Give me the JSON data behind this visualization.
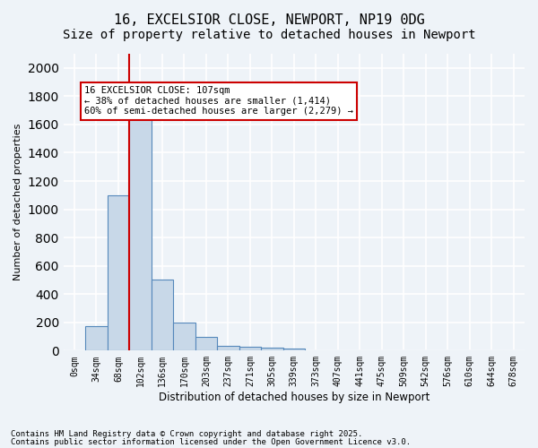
{
  "title1": "16, EXCELSIOR CLOSE, NEWPORT, NP19 0DG",
  "title2": "Size of property relative to detached houses in Newport",
  "xlabel": "Distribution of detached houses by size in Newport",
  "ylabel": "Number of detached properties",
  "bar_values": [
    0,
    175,
    1100,
    1650,
    500,
    200,
    100,
    35,
    25,
    18,
    15,
    0,
    0,
    0,
    0,
    0,
    0,
    0,
    0,
    0,
    0
  ],
  "bin_labels": [
    "0sqm",
    "34sqm",
    "68sqm",
    "102sqm",
    "136sqm",
    "170sqm",
    "203sqm",
    "237sqm",
    "271sqm",
    "305sqm",
    "339sqm",
    "373sqm",
    "407sqm",
    "441sqm",
    "475sqm",
    "509sqm",
    "542sqm",
    "576sqm",
    "610sqm",
    "644sqm",
    "678sqm"
  ],
  "bar_color": "#c8d8e8",
  "bar_edge_color": "#5588bb",
  "red_line_bin": 3,
  "annotation_text": "16 EXCELSIOR CLOSE: 107sqm\n← 38% of detached houses are smaller (1,414)\n60% of semi-detached houses are larger (2,279) →",
  "annotation_box_color": "#ffffff",
  "annotation_box_edge_color": "#cc0000",
  "red_line_color": "#cc0000",
  "ylim": [
    0,
    2100
  ],
  "yticks": [
    0,
    200,
    400,
    600,
    800,
    1000,
    1200,
    1400,
    1600,
    1800,
    2000
  ],
  "footer1": "Contains HM Land Registry data © Crown copyright and database right 2025.",
  "footer2": "Contains public sector information licensed under the Open Government Licence v3.0.",
  "bg_color": "#eef3f8",
  "grid_color": "#ffffff",
  "title_fontsize": 11,
  "subtitle_fontsize": 10
}
